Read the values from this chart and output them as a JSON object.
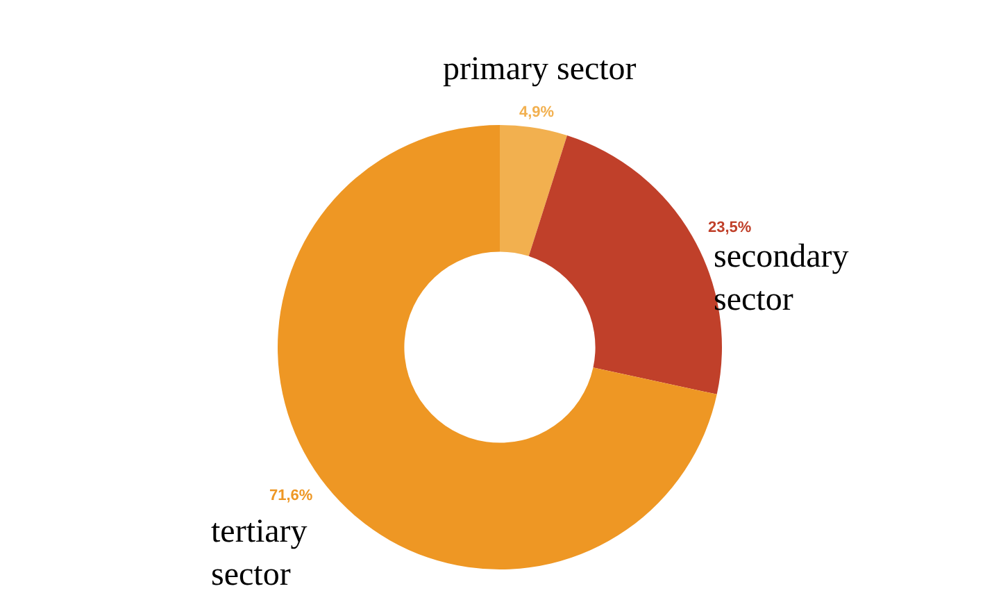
{
  "chart_data": {
    "type": "donut",
    "categories": [
      "primary sector",
      "secondary sector",
      "tertiary sector"
    ],
    "values": [
      4.9,
      23.5,
      71.6
    ],
    "value_labels": [
      "4,9%",
      "23,5%",
      "71,6%"
    ],
    "colors": [
      "#f2b04f",
      "#c0402a",
      "#ee9724"
    ],
    "legend": false
  }
}
